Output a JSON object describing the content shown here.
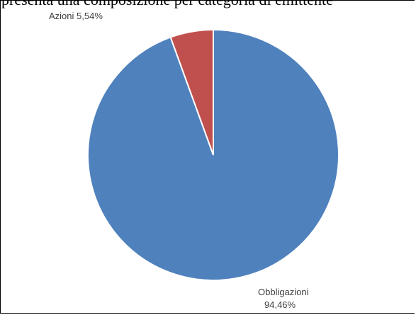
{
  "header": {
    "clipped_text": "presenta una composizione per categoria di emittente"
  },
  "chart_data": {
    "type": "pie",
    "title": "",
    "slices": [
      {
        "label": "Obbligazioni",
        "value": 94.46,
        "display": "94,46%",
        "color": "#4F81BD"
      },
      {
        "label": "Azioni",
        "value": 5.54,
        "display": "5,54%",
        "color": "#C0504D"
      }
    ]
  }
}
